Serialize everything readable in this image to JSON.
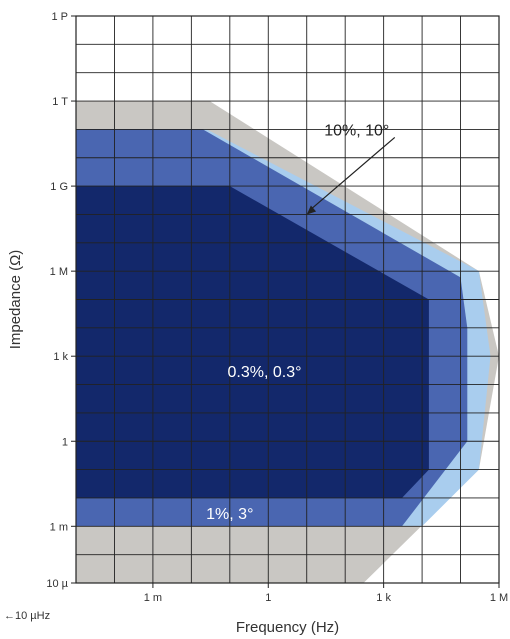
{
  "chart_data": {
    "type": "area",
    "xlabel": "Frequency (Hz)",
    "ylabel": "Impedance (Ω)",
    "x_scale": "log",
    "y_scale": "log",
    "xlim": [
      1e-05,
      1000000.0
    ],
    "ylim": [
      1e-05,
      1000000000000000.0
    ],
    "x_ticks": [
      {
        "value": 0.001,
        "label": "1 m"
      },
      {
        "value": 1,
        "label": "1"
      },
      {
        "value": 1000,
        "label": "1 k"
      },
      {
        "value": 1000000,
        "label": "1 M"
      }
    ],
    "y_ticks": [
      {
        "value": 1e-05,
        "label": "10 µ"
      },
      {
        "value": 0.001,
        "label": "1 m"
      },
      {
        "value": 1,
        "label": "1"
      },
      {
        "value": 1000,
        "label": "1 k"
      },
      {
        "value": 1000000,
        "label": "1 M"
      },
      {
        "value": 1000000000.0,
        "label": "1 G"
      },
      {
        "value": 1000000000000.0,
        "label": "1 T"
      },
      {
        "value": 1000000000000000.0,
        "label": "1 P"
      }
    ],
    "x_minor_step_decades": 1,
    "y_minor_step_decades": 1,
    "grid": true,
    "x_extension_note": "←10 µHz",
    "regions": [
      {
        "label": "",
        "color": "#c9c7c3",
        "polygon": [
          [
            1e-05,
            1e-05
          ],
          [
            1e-05,
            1000000000000.0
          ],
          [
            0.03,
            1000000000000.0
          ],
          [
            300000.0,
            1000000.0
          ],
          [
            1000000.0,
            1000.0
          ],
          [
            300000.0,
            0.1
          ],
          [
            300.0,
            1e-05
          ]
        ]
      },
      {
        "label": "10%, 10°",
        "color": "#a9cdee",
        "polygon": [
          [
            1e-05,
            0.001
          ],
          [
            1e-05,
            100000000000.0
          ],
          [
            0.025,
            100000000000.0
          ],
          [
            300000.0,
            1000000.0
          ],
          [
            600000.0,
            1000.0
          ],
          [
            300000.0,
            0.1
          ],
          [
            10000.0,
            0.001
          ]
        ]
      },
      {
        "label": "1%, 3°",
        "color": "#4a66b1",
        "polygon": [
          [
            1e-05,
            0.001
          ],
          [
            1e-05,
            100000000000.0
          ],
          [
            0.02,
            100000000000.0
          ],
          [
            100000.0,
            600000.0
          ],
          [
            150000.0,
            10000.0
          ],
          [
            150000.0,
            1.0
          ],
          [
            3000.0,
            0.001
          ]
        ]
      },
      {
        "label": "0.3%, 0.3°",
        "color": "#13286b",
        "polygon": [
          [
            1e-05,
            0.01
          ],
          [
            1e-05,
            1000000000.0
          ],
          [
            0.1,
            1000000000.0
          ],
          [
            15000.0,
            100000.0
          ],
          [
            15000.0,
            0.1
          ],
          [
            3000.0,
            0.01
          ]
        ]
      }
    ],
    "annotations": [
      {
        "text": "10%, 10°",
        "x": 200.0,
        "y": 100000000000.0,
        "arrow_to": [
          10,
          100000000.0
        ]
      },
      {
        "text": "0.3%, 0.3°",
        "x": 0.8,
        "y": 300
      },
      {
        "text": "1%, 3°",
        "x": 0.1,
        "y": 0.003
      }
    ]
  }
}
